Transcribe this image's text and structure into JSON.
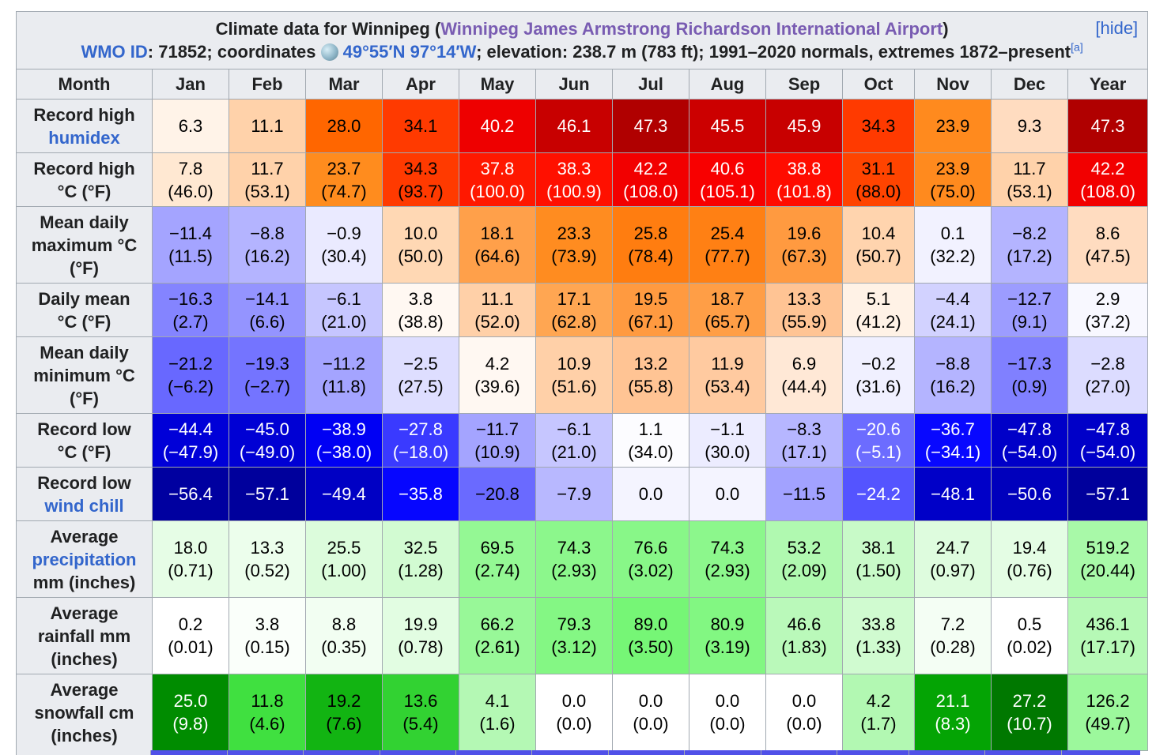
{
  "caption": {
    "title_prefix": "Climate data for Winnipeg (",
    "title_link": "Winnipeg James Armstrong Richardson International Airport",
    "title_suffix": ")",
    "hide": "[hide]",
    "wmo_label": "WMO ID",
    "wmo_text": ": 71852; coordinates ",
    "coords_link": "49°55′N 97°14′W",
    "rest_text": "; elevation: 238.7 m (783 ft); 1991–2020 normals, extremes 1872–present",
    "note": "[a]"
  },
  "headers": [
    "Month",
    "Jan",
    "Feb",
    "Mar",
    "Apr",
    "May",
    "Jun",
    "Jul",
    "Aug",
    "Sep",
    "Oct",
    "Nov",
    "Dec",
    "Year"
  ],
  "rows": [
    {
      "label_lines": [
        {
          "text": "Record high",
          "link": false
        },
        {
          "text": "humidex",
          "link": true
        }
      ],
      "cells": [
        {
          "l1": "6.3",
          "l2": "",
          "bg": "#fff3e8",
          "fg": "#000000"
        },
        {
          "l1": "11.1",
          "l2": "",
          "bg": "#ffd2aa",
          "fg": "#000000"
        },
        {
          "l1": "28.0",
          "l2": "",
          "bg": "#ff6600",
          "fg": "#000000"
        },
        {
          "l1": "34.1",
          "l2": "",
          "bg": "#ff3a00",
          "fg": "#000000"
        },
        {
          "l1": "40.2",
          "l2": "",
          "bg": "#ee0000",
          "fg": "#ffffff"
        },
        {
          "l1": "46.1",
          "l2": "",
          "bg": "#c80000",
          "fg": "#ffffff"
        },
        {
          "l1": "47.3",
          "l2": "",
          "bg": "#b00000",
          "fg": "#ffffff"
        },
        {
          "l1": "45.5",
          "l2": "",
          "bg": "#cc0000",
          "fg": "#ffffff"
        },
        {
          "l1": "45.9",
          "l2": "",
          "bg": "#c80000",
          "fg": "#ffffff"
        },
        {
          "l1": "34.3",
          "l2": "",
          "bg": "#ff3a00",
          "fg": "#000000"
        },
        {
          "l1": "23.9",
          "l2": "",
          "bg": "#ff8a1e",
          "fg": "#000000"
        },
        {
          "l1": "9.3",
          "l2": "",
          "bg": "#ffdcc0",
          "fg": "#000000"
        },
        {
          "l1": "47.3",
          "l2": "",
          "bg": "#b00000",
          "fg": "#ffffff"
        }
      ]
    },
    {
      "label_lines": [
        {
          "text": "Record high",
          "link": false
        },
        {
          "text": "°C (°F)",
          "link": false
        }
      ],
      "cells": [
        {
          "l1": "7.8",
          "l2": "(46.0)",
          "bg": "#ffe8d2",
          "fg": "#000000"
        },
        {
          "l1": "11.7",
          "l2": "(53.1)",
          "bg": "#ffd2aa",
          "fg": "#000000"
        },
        {
          "l1": "23.7",
          "l2": "(74.7)",
          "bg": "#ff8c1e",
          "fg": "#000000"
        },
        {
          "l1": "34.3",
          "l2": "(93.7)",
          "bg": "#ff3a00",
          "fg": "#000000"
        },
        {
          "l1": "37.8",
          "l2": "(100.0)",
          "bg": "#ff1800",
          "fg": "#ffffff"
        },
        {
          "l1": "38.3",
          "l2": "(100.9)",
          "bg": "#ff1000",
          "fg": "#ffffff"
        },
        {
          "l1": "42.2",
          "l2": "(108.0)",
          "bg": "#f20000",
          "fg": "#ffffff"
        },
        {
          "l1": "40.6",
          "l2": "(105.1)",
          "bg": "#f80000",
          "fg": "#ffffff"
        },
        {
          "l1": "38.8",
          "l2": "(101.8)",
          "bg": "#ff0c00",
          "fg": "#ffffff"
        },
        {
          "l1": "31.1",
          "l2": "(88.0)",
          "bg": "#ff4400",
          "fg": "#000000"
        },
        {
          "l1": "23.9",
          "l2": "(75.0)",
          "bg": "#ff8a1e",
          "fg": "#000000"
        },
        {
          "l1": "11.7",
          "l2": "(53.1)",
          "bg": "#ffd2aa",
          "fg": "#000000"
        },
        {
          "l1": "42.2",
          "l2": "(108.0)",
          "bg": "#f20000",
          "fg": "#ffffff"
        }
      ]
    },
    {
      "label_lines": [
        {
          "text": "Mean daily",
          "link": false
        },
        {
          "text": "maximum °C",
          "link": false
        },
        {
          "text": "(°F)",
          "link": false
        }
      ],
      "cells": [
        {
          "l1": "−11.4",
          "l2": "(11.5)",
          "bg": "#a4a4ff",
          "fg": "#000000"
        },
        {
          "l1": "−8.8",
          "l2": "(16.2)",
          "bg": "#b4b4ff",
          "fg": "#000000"
        },
        {
          "l1": "−0.9",
          "l2": "(30.4)",
          "bg": "#eaeaff",
          "fg": "#000000"
        },
        {
          "l1": "10.0",
          "l2": "(50.0)",
          "bg": "#ffd8b4",
          "fg": "#000000"
        },
        {
          "l1": "18.1",
          "l2": "(64.6)",
          "bg": "#ffa04a",
          "fg": "#000000"
        },
        {
          "l1": "23.3",
          "l2": "(73.9)",
          "bg": "#ff8c20",
          "fg": "#000000"
        },
        {
          "l1": "25.8",
          "l2": "(78.4)",
          "bg": "#ff7d10",
          "fg": "#000000"
        },
        {
          "l1": "25.4",
          "l2": "(77.7)",
          "bg": "#ff8014",
          "fg": "#000000"
        },
        {
          "l1": "19.6",
          "l2": "(67.3)",
          "bg": "#ff9a40",
          "fg": "#000000"
        },
        {
          "l1": "10.4",
          "l2": "(50.7)",
          "bg": "#ffd4ae",
          "fg": "#000000"
        },
        {
          "l1": "0.1",
          "l2": "(32.2)",
          "bg": "#f2f2ff",
          "fg": "#000000"
        },
        {
          "l1": "−8.2",
          "l2": "(17.2)",
          "bg": "#b4b4ff",
          "fg": "#000000"
        },
        {
          "l1": "8.6",
          "l2": "(47.5)",
          "bg": "#ffdcc0",
          "fg": "#000000"
        }
      ]
    },
    {
      "label_lines": [
        {
          "text": "Daily mean",
          "link": false
        },
        {
          "text": "°C (°F)",
          "link": false
        }
      ],
      "cells": [
        {
          "l1": "−16.3",
          "l2": "(2.7)",
          "bg": "#8484ff",
          "fg": "#000000"
        },
        {
          "l1": "−14.1",
          "l2": "(6.6)",
          "bg": "#9494ff",
          "fg": "#000000"
        },
        {
          "l1": "−6.1",
          "l2": "(21.0)",
          "bg": "#c6c6ff",
          "fg": "#000000"
        },
        {
          "l1": "3.8",
          "l2": "(38.8)",
          "bg": "#fff8f2",
          "fg": "#000000"
        },
        {
          "l1": "11.1",
          "l2": "(52.0)",
          "bg": "#ffd0a8",
          "fg": "#000000"
        },
        {
          "l1": "17.1",
          "l2": "(62.8)",
          "bg": "#ffa652",
          "fg": "#000000"
        },
        {
          "l1": "19.5",
          "l2": "(67.1)",
          "bg": "#ff9a40",
          "fg": "#000000"
        },
        {
          "l1": "18.7",
          "l2": "(65.7)",
          "bg": "#ff9e46",
          "fg": "#000000"
        },
        {
          "l1": "13.3",
          "l2": "(55.9)",
          "bg": "#ffc494",
          "fg": "#000000"
        },
        {
          "l1": "5.1",
          "l2": "(41.2)",
          "bg": "#fff2e6",
          "fg": "#000000"
        },
        {
          "l1": "−4.4",
          "l2": "(24.1)",
          "bg": "#d2d2ff",
          "fg": "#000000"
        },
        {
          "l1": "−12.7",
          "l2": "(9.1)",
          "bg": "#9c9cff",
          "fg": "#000000"
        },
        {
          "l1": "2.9",
          "l2": "(37.2)",
          "bg": "#f8f8ff",
          "fg": "#000000"
        }
      ]
    },
    {
      "label_lines": [
        {
          "text": "Mean daily",
          "link": false
        },
        {
          "text": "minimum °C",
          "link": false
        },
        {
          "text": "(°F)",
          "link": false
        }
      ],
      "cells": [
        {
          "l1": "−21.2",
          "l2": "(−6.2)",
          "bg": "#6868ff",
          "fg": "#000000"
        },
        {
          "l1": "−19.3",
          "l2": "(−2.7)",
          "bg": "#7474ff",
          "fg": "#000000"
        },
        {
          "l1": "−11.2",
          "l2": "(11.8)",
          "bg": "#a4a4ff",
          "fg": "#000000"
        },
        {
          "l1": "−2.5",
          "l2": "(27.5)",
          "bg": "#dedeff",
          "fg": "#000000"
        },
        {
          "l1": "4.2",
          "l2": "(39.6)",
          "bg": "#fff8f2",
          "fg": "#000000"
        },
        {
          "l1": "10.9",
          "l2": "(51.6)",
          "bg": "#ffd0a8",
          "fg": "#000000"
        },
        {
          "l1": "13.2",
          "l2": "(55.8)",
          "bg": "#ffc494",
          "fg": "#000000"
        },
        {
          "l1": "11.9",
          "l2": "(53.4)",
          "bg": "#ffcaa0",
          "fg": "#000000"
        },
        {
          "l1": "6.9",
          "l2": "(44.4)",
          "bg": "#ffe8d6",
          "fg": "#000000"
        },
        {
          "l1": "−0.2",
          "l2": "(31.6)",
          "bg": "#f0f0ff",
          "fg": "#000000"
        },
        {
          "l1": "−8.8",
          "l2": "(16.2)",
          "bg": "#b4b4ff",
          "fg": "#000000"
        },
        {
          "l1": "−17.3",
          "l2": "(0.9)",
          "bg": "#8080ff",
          "fg": "#000000"
        },
        {
          "l1": "−2.8",
          "l2": "(27.0)",
          "bg": "#dcdcff",
          "fg": "#000000"
        }
      ]
    },
    {
      "label_lines": [
        {
          "text": "Record low",
          "link": false
        },
        {
          "text": "°C (°F)",
          "link": false
        }
      ],
      "cells": [
        {
          "l1": "−44.4",
          "l2": "(−47.9)",
          "bg": "#0000d8",
          "fg": "#ffffff"
        },
        {
          "l1": "−45.0",
          "l2": "(−49.0)",
          "bg": "#0000d4",
          "fg": "#ffffff"
        },
        {
          "l1": "−38.9",
          "l2": "(−38.0)",
          "bg": "#0000f4",
          "fg": "#ffffff"
        },
        {
          "l1": "−27.8",
          "l2": "(−18.0)",
          "bg": "#3a3aff",
          "fg": "#ffffff"
        },
        {
          "l1": "−11.7",
          "l2": "(10.9)",
          "bg": "#a4a4ff",
          "fg": "#000000"
        },
        {
          "l1": "−6.1",
          "l2": "(21.0)",
          "bg": "#c6c6ff",
          "fg": "#000000"
        },
        {
          "l1": "1.1",
          "l2": "(34.0)",
          "bg": "#fcfcff",
          "fg": "#000000"
        },
        {
          "l1": "−1.1",
          "l2": "(30.0)",
          "bg": "#ececff",
          "fg": "#000000"
        },
        {
          "l1": "−8.3",
          "l2": "(17.1)",
          "bg": "#b6b6ff",
          "fg": "#000000"
        },
        {
          "l1": "−20.6",
          "l2": "(−5.1)",
          "bg": "#6c6cff",
          "fg": "#ffffff"
        },
        {
          "l1": "−36.7",
          "l2": "(−34.1)",
          "bg": "#0808ff",
          "fg": "#ffffff"
        },
        {
          "l1": "−47.8",
          "l2": "(−54.0)",
          "bg": "#0000c8",
          "fg": "#ffffff"
        },
        {
          "l1": "−47.8",
          "l2": "(−54.0)",
          "bg": "#0000c8",
          "fg": "#ffffff"
        }
      ]
    },
    {
      "label_lines": [
        {
          "text": "Record low",
          "link": false
        },
        {
          "text": "wind chill",
          "link": true
        }
      ],
      "cells": [
        {
          "l1": "−56.4",
          "l2": "",
          "bg": "#0000a0",
          "fg": "#ffffff"
        },
        {
          "l1": "−57.1",
          "l2": "",
          "bg": "#00009c",
          "fg": "#ffffff"
        },
        {
          "l1": "−49.4",
          "l2": "",
          "bg": "#0000c4",
          "fg": "#ffffff"
        },
        {
          "l1": "−35.8",
          "l2": "",
          "bg": "#0606ff",
          "fg": "#ffffff"
        },
        {
          "l1": "−20.8",
          "l2": "",
          "bg": "#6a6aff",
          "fg": "#000000"
        },
        {
          "l1": "−7.9",
          "l2": "",
          "bg": "#b8b8ff",
          "fg": "#000000"
        },
        {
          "l1": "0.0",
          "l2": "",
          "bg": "#f4f4ff",
          "fg": "#000000"
        },
        {
          "l1": "0.0",
          "l2": "",
          "bg": "#f4f4ff",
          "fg": "#000000"
        },
        {
          "l1": "−11.5",
          "l2": "",
          "bg": "#a2a2ff",
          "fg": "#000000"
        },
        {
          "l1": "−24.2",
          "l2": "",
          "bg": "#5454ff",
          "fg": "#ffffff"
        },
        {
          "l1": "−48.1",
          "l2": "",
          "bg": "#0000c8",
          "fg": "#ffffff"
        },
        {
          "l1": "−50.6",
          "l2": "",
          "bg": "#0000bc",
          "fg": "#ffffff"
        },
        {
          "l1": "−57.1",
          "l2": "",
          "bg": "#00009c",
          "fg": "#ffffff"
        }
      ]
    },
    {
      "label_lines": [
        {
          "text": "Average",
          "link": false
        },
        {
          "text": "precipitation",
          "link": true
        },
        {
          "text": "mm (inches)",
          "link": false
        }
      ],
      "cells": [
        {
          "l1": "18.0",
          "l2": "(0.71)",
          "bg": "#e6fde6",
          "fg": "#000000"
        },
        {
          "l1": "13.3",
          "l2": "(0.52)",
          "bg": "#ecfeec",
          "fg": "#000000"
        },
        {
          "l1": "25.5",
          "l2": "(1.00)",
          "bg": "#dcfcdc",
          "fg": "#000000"
        },
        {
          "l1": "32.5",
          "l2": "(1.28)",
          "bg": "#d2fbd2",
          "fg": "#000000"
        },
        {
          "l1": "69.5",
          "l2": "(2.74)",
          "bg": "#94f894",
          "fg": "#000000"
        },
        {
          "l1": "74.3",
          "l2": "(2.93)",
          "bg": "#8cf78c",
          "fg": "#000000"
        },
        {
          "l1": "76.6",
          "l2": "(3.02)",
          "bg": "#88f788",
          "fg": "#000000"
        },
        {
          "l1": "74.3",
          "l2": "(2.93)",
          "bg": "#8cf78c",
          "fg": "#000000"
        },
        {
          "l1": "53.2",
          "l2": "(2.09)",
          "bg": "#b0f9b0",
          "fg": "#000000"
        },
        {
          "l1": "38.1",
          "l2": "(1.50)",
          "bg": "#c8fac8",
          "fg": "#000000"
        },
        {
          "l1": "24.7",
          "l2": "(0.97)",
          "bg": "#defcde",
          "fg": "#000000"
        },
        {
          "l1": "19.4",
          "l2": "(0.76)",
          "bg": "#e4fde4",
          "fg": "#000000"
        },
        {
          "l1": "519.2",
          "l2": "(20.44)",
          "bg": "#a8f9a8",
          "fg": "#000000"
        }
      ]
    },
    {
      "label_lines": [
        {
          "text": "Average",
          "link": false
        },
        {
          "text": "rainfall mm",
          "link": false
        },
        {
          "text": "(inches)",
          "link": false
        }
      ],
      "cells": [
        {
          "l1": "0.2",
          "l2": "(0.01)",
          "bg": "#ffffff",
          "fg": "#000000"
        },
        {
          "l1": "3.8",
          "l2": "(0.15)",
          "bg": "#fafffa",
          "fg": "#000000"
        },
        {
          "l1": "8.8",
          "l2": "(0.35)",
          "bg": "#f2fef2",
          "fg": "#000000"
        },
        {
          "l1": "19.9",
          "l2": "(0.78)",
          "bg": "#e2fde2",
          "fg": "#000000"
        },
        {
          "l1": "66.2",
          "l2": "(2.61)",
          "bg": "#98f898",
          "fg": "#000000"
        },
        {
          "l1": "79.3",
          "l2": "(3.12)",
          "bg": "#84f784",
          "fg": "#000000"
        },
        {
          "l1": "89.0",
          "l2": "(3.50)",
          "bg": "#76f676",
          "fg": "#000000"
        },
        {
          "l1": "80.9",
          "l2": "(3.19)",
          "bg": "#82f782",
          "fg": "#000000"
        },
        {
          "l1": "46.6",
          "l2": "(1.83)",
          "bg": "#baf9ba",
          "fg": "#000000"
        },
        {
          "l1": "33.8",
          "l2": "(1.33)",
          "bg": "#d0fbd0",
          "fg": "#000000"
        },
        {
          "l1": "7.2",
          "l2": "(0.28)",
          "bg": "#f4fef4",
          "fg": "#000000"
        },
        {
          "l1": "0.5",
          "l2": "(0.02)",
          "bg": "#ffffff",
          "fg": "#000000"
        },
        {
          "l1": "436.1",
          "l2": "(17.17)",
          "bg": "#b6f9b6",
          "fg": "#000000"
        }
      ]
    },
    {
      "label_lines": [
        {
          "text": "Average",
          "link": false
        },
        {
          "text": "snowfall cm",
          "link": false
        },
        {
          "text": "(inches)",
          "link": false
        }
      ],
      "cells": [
        {
          "l1": "25.0",
          "l2": "(9.8)",
          "bg": "#008c00",
          "fg": "#ffffff"
        },
        {
          "l1": "11.8",
          "l2": "(4.6)",
          "bg": "#40e040",
          "fg": "#000000"
        },
        {
          "l1": "19.2",
          "l2": "(7.6)",
          "bg": "#12b412",
          "fg": "#000000"
        },
        {
          "l1": "13.6",
          "l2": "(5.4)",
          "bg": "#32d232",
          "fg": "#000000"
        },
        {
          "l1": "4.1",
          "l2": "(1.6)",
          "bg": "#b4f8b4",
          "fg": "#000000"
        },
        {
          "l1": "0.0",
          "l2": "(0.0)",
          "bg": "#ffffff",
          "fg": "#000000"
        },
        {
          "l1": "0.0",
          "l2": "(0.0)",
          "bg": "#ffffff",
          "fg": "#000000"
        },
        {
          "l1": "0.0",
          "l2": "(0.0)",
          "bg": "#ffffff",
          "fg": "#000000"
        },
        {
          "l1": "0.0",
          "l2": "(0.0)",
          "bg": "#ffffff",
          "fg": "#000000"
        },
        {
          "l1": "4.2",
          "l2": "(1.7)",
          "bg": "#b2f8b2",
          "fg": "#000000"
        },
        {
          "l1": "21.1",
          "l2": "(8.3)",
          "bg": "#04a404",
          "fg": "#ffffff"
        },
        {
          "l1": "27.2",
          "l2": "(10.7)",
          "bg": "#007800",
          "fg": "#ffffff"
        },
        {
          "l1": "126.2",
          "l2": "(49.7)",
          "bg": "#9cf89c",
          "fg": "#000000"
        }
      ]
    }
  ],
  "partial_row_colors": [
    "#ffffff",
    "#5050e8",
    "#5050e8",
    "#5050e8",
    "#5050e8",
    "#5050e8",
    "#5050e8",
    "#5050e8",
    "#5050e8",
    "#5050e8",
    "#5050e8",
    "#5050e8",
    "#5050e8",
    "#5050e8"
  ]
}
